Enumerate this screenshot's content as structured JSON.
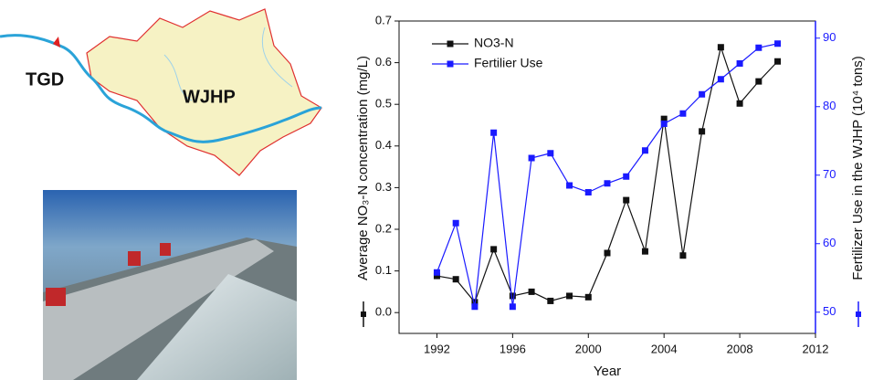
{
  "map_labels": [
    "TGD",
    "WJHP"
  ],
  "chart_data": {
    "type": "line",
    "xlabel": "Year",
    "ylabel": "Average NO₃-N concentration (mg/L)",
    "y2label": "Fertilizer Use in the WJHP (10⁴ tons)",
    "x": [
      1992,
      1993,
      1994,
      1995,
      1996,
      1997,
      1998,
      1999,
      2000,
      2001,
      2002,
      2003,
      2004,
      2005,
      2006,
      2007,
      2008,
      2009,
      2010
    ],
    "series": [
      {
        "name": "NO3-N",
        "color": "#111111",
        "axis": "y",
        "values": [
          0.088,
          0.08,
          0.025,
          0.152,
          0.04,
          0.05,
          0.028,
          0.04,
          0.037,
          0.143,
          0.27,
          0.147,
          0.465,
          0.137,
          0.435,
          0.637,
          0.502,
          0.555,
          0.603
        ]
      },
      {
        "name": "Fertilier Use",
        "color": "#1a1aff",
        "axis": "y2",
        "values": [
          55.8,
          63,
          50.8,
          76.2,
          50.8,
          72.5,
          73.2,
          68.5,
          67.5,
          68.8,
          69.8,
          73.6,
          77.5,
          79,
          81.8,
          84,
          86.3,
          88.6,
          89.2
        ]
      }
    ],
    "xlim": [
      1990,
      2012
    ],
    "xticks": [
      1992,
      1996,
      2000,
      2004,
      2008,
      2012
    ],
    "ylim": [
      -0.05,
      0.7
    ],
    "yticks": [
      {
        "value": 0,
        "label": "0.0"
      },
      0.1,
      0.2,
      0.3,
      0.4,
      0.5,
      0.6,
      0.7
    ],
    "y2lim": [
      46.9,
      92.5
    ],
    "y2ticks": [
      50,
      60,
      70,
      80,
      90
    ],
    "legend": "upper left"
  }
}
